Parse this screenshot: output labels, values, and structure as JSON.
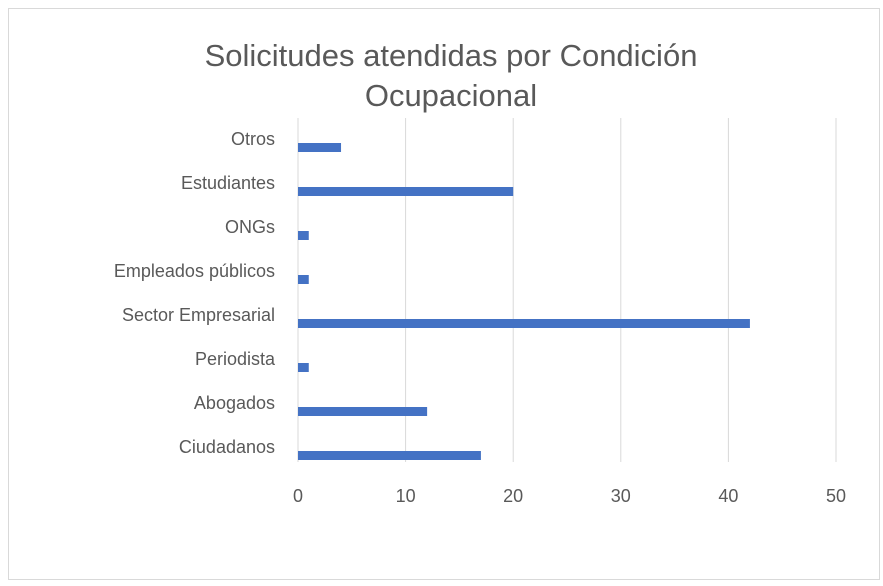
{
  "chart_data": {
    "type": "bar",
    "orientation": "horizontal",
    "title": "Solicitudes atendidas por Condición Ocupacional",
    "categories": [
      "Otros",
      "Estudiantes",
      "ONGs",
      "Empleados públicos",
      "Sector Empresarial",
      "Periodista",
      "Abogados",
      "Ciudadanos"
    ],
    "values": [
      4,
      20,
      1,
      1,
      42,
      1,
      12,
      17
    ],
    "color": "#4472c4",
    "xlim": [
      0,
      50
    ],
    "xticks": [
      0,
      10,
      20,
      30,
      40,
      50
    ],
    "grid": true
  }
}
